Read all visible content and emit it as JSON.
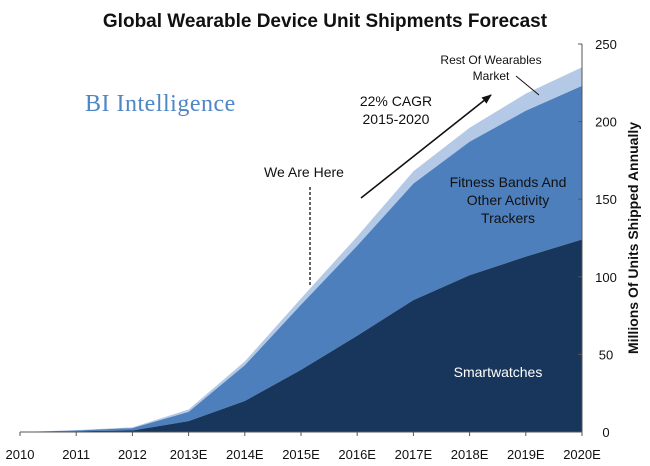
{
  "brand": {
    "name": "BI Intelligence",
    "color": "#4f86c6"
  },
  "chart_data": {
    "type": "area",
    "stacked": true,
    "title": "Global Wearable Device Unit Shipments Forecast",
    "xlabel": "",
    "ylabel": "Millions Of Units Shipped Annually",
    "y_axis_side": "right",
    "ylim": [
      0,
      250
    ],
    "yticks": [
      0,
      50,
      100,
      150,
      200,
      250
    ],
    "grid": false,
    "x": [
      "2010",
      "2011",
      "2012",
      "2013E",
      "2014E",
      "2015E",
      "2016E",
      "2017E",
      "2018E",
      "2019E",
      "2020E"
    ],
    "series": [
      {
        "name": "Smartwatches",
        "color": "#18365c",
        "values": [
          0,
          0.5,
          1,
          7,
          20,
          40,
          62,
          85,
          101,
          113,
          124
        ]
      },
      {
        "name": "Fitness Bands And Other Activity Trackers",
        "color": "#4d7fbd",
        "values": [
          0,
          0.5,
          1.5,
          6,
          23,
          42,
          58,
          75,
          86,
          94,
          99
        ]
      },
      {
        "name": "Rest Of Wearables Market",
        "color": "#b4c9e6",
        "values": [
          0,
          0.2,
          0.5,
          1.5,
          2.5,
          4,
          6,
          8,
          9,
          11,
          12
        ]
      }
    ],
    "annotations": {
      "we_are_here": "We Are Here",
      "cagr_line1": "22% CAGR",
      "cagr_line2": "2015-2020",
      "rest_line1": "Rest Of Wearables",
      "rest_line2": "Market",
      "fitness_line1": "Fitness Bands And",
      "fitness_line2": "Other Activity",
      "fitness_line3": "Trackers",
      "smartwatches": "Smartwatches"
    }
  }
}
